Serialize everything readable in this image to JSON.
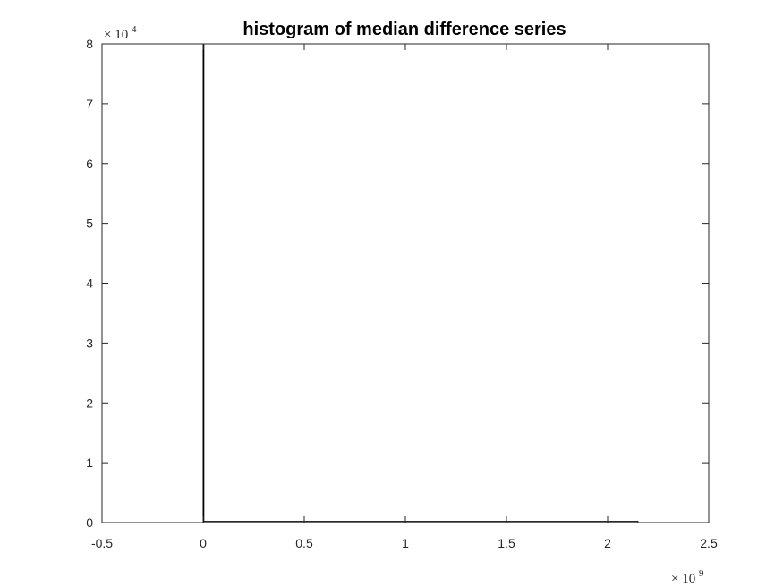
{
  "chart_data": {
    "type": "bar",
    "title": "histogram of median difference  series",
    "xlabel": "",
    "ylabel": "",
    "xlim": [
      -0.5,
      2.5
    ],
    "ylim": [
      0,
      8
    ],
    "x_ticks": [
      "-0.5",
      "0",
      "0.5",
      "1",
      "1.5",
      "2",
      "2.5"
    ],
    "y_ticks": [
      "0",
      "1",
      "2",
      "3",
      "4",
      "5",
      "6",
      "7",
      "8"
    ],
    "x_multiplier": {
      "base": "× 10",
      "exponent": "9"
    },
    "y_multiplier": {
      "base": "× 10",
      "exponent": "4"
    },
    "grid": false,
    "bins": [
      {
        "x_start": 0.0,
        "x_end": 0.0013,
        "count": 8.0
      },
      {
        "x_start": 0.0013,
        "x_end": 2.15,
        "count": 0.02
      }
    ],
    "colors": {
      "axis": "#262626",
      "bar_edge": "#000000",
      "bar_fill": "#ffffff"
    }
  }
}
